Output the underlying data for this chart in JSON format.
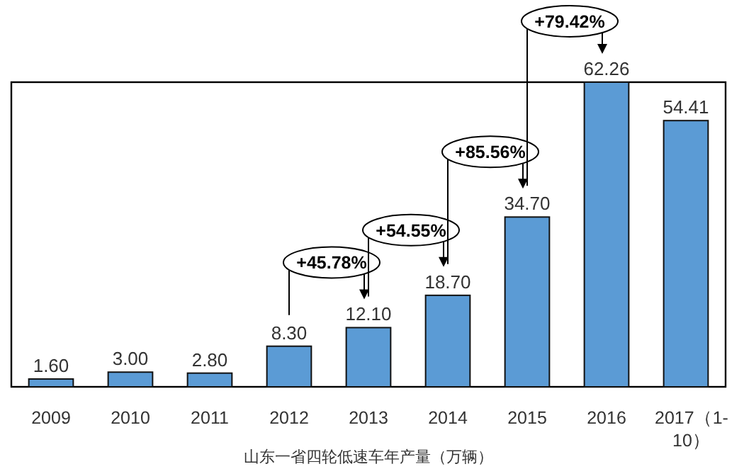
{
  "chart_data": {
    "type": "bar",
    "xlabel": "山东一省四轮低速车年产量（万辆）",
    "categories": [
      "2009",
      "2010",
      "2011",
      "2012",
      "2013",
      "2014",
      "2015",
      "2016",
      "2017（1-10）"
    ],
    "series": [
      {
        "color": "#5b9bd5",
        "values": [
          1.6,
          3.0,
          2.8,
          8.3,
          12.1,
          18.7,
          34.7,
          62.26,
          54.41
        ],
        "value_labels": [
          "1.60",
          "3.00",
          "2.80",
          "8.30",
          "12.10",
          "18.70",
          "34.70",
          "62.26",
          "54.41"
        ]
      }
    ],
    "annotations": [
      "+45.78%",
      "+54.55%",
      "+85.56%",
      "+79.42%"
    ]
  }
}
